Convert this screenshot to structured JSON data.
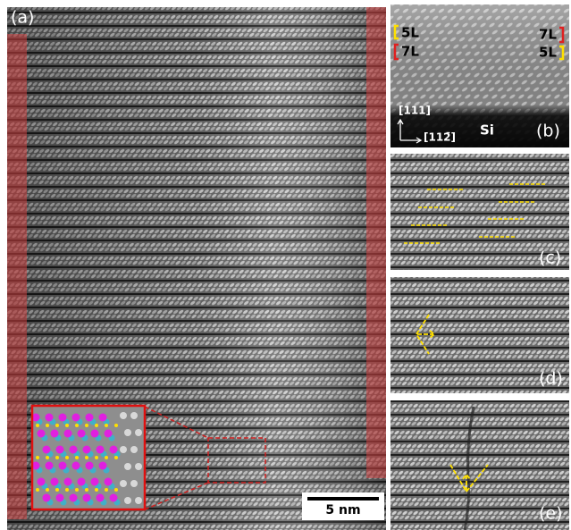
{
  "panels": {
    "a": {
      "label": "(a)",
      "scale_bar": "5 nm"
    },
    "b": {
      "label": "(b)",
      "layer_labels": [
        "5L",
        "7L",
        "7L",
        "5L"
      ],
      "direction_up": "[111]",
      "direction_right": "[112̄]",
      "substrate": "Si"
    },
    "c": {
      "label": "(c)"
    },
    "d": {
      "label": "(d)"
    },
    "e": {
      "label": "(e)"
    }
  }
}
